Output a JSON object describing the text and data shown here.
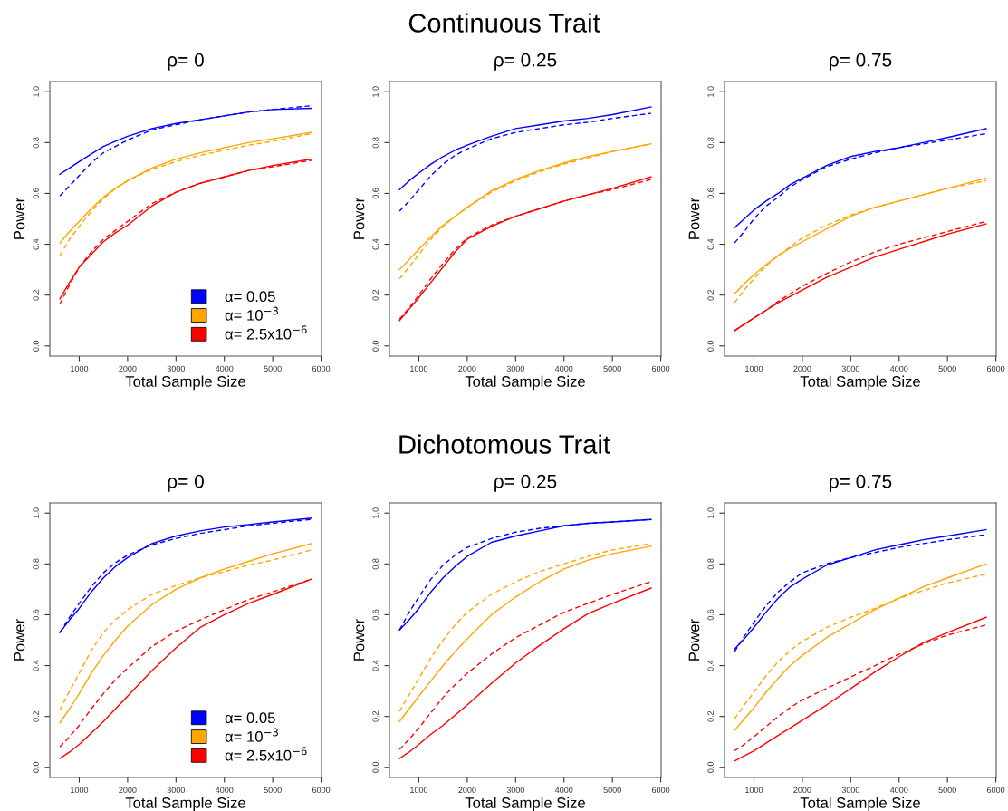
{
  "chart_data": [
    {
      "type": "line",
      "title": "ρ= 0",
      "annotations": [
        "Continuous Trait"
      ],
      "xlabel": "Total Sample Size",
      "ylabel": "Power",
      "xlim": [
        392,
        6008
      ],
      "ylim": [
        -0.04,
        1.04
      ],
      "xticks": [
        1000,
        2000,
        3000,
        4000,
        5000,
        6000
      ],
      "yticks": [
        {
          "value": 0,
          "label": "0.0"
        },
        {
          "value": 0.2,
          "label": "0.2"
        },
        {
          "value": 0.4,
          "label": "0.4"
        },
        {
          "value": 0.6,
          "label": "0.6"
        },
        {
          "value": 0.8,
          "label": "0.8"
        },
        {
          "value": 1,
          "label": "1.0"
        }
      ],
      "legend": "bottom right",
      "grid": false,
      "x": [
        600,
        800,
        1000,
        1250,
        1500,
        1750,
        2000,
        2500,
        3000,
        3500,
        4000,
        4500,
        5000,
        5800
      ],
      "series": [
        {
          "name": "α= 0.05",
          "color": "#0000ff",
          "line_style": "solid",
          "values": [
            0.675,
            0.7,
            0.725,
            0.755,
            0.785,
            0.805,
            0.825,
            0.855,
            0.875,
            0.89,
            0.905,
            0.92,
            0.93,
            0.935
          ]
        },
        {
          "color": "#0000ff",
          "line_style": "dashed",
          "values": [
            0.59,
            0.63,
            0.67,
            0.72,
            0.76,
            0.785,
            0.81,
            0.85,
            0.87,
            0.89,
            0.905,
            0.92,
            0.93,
            0.945
          ]
        },
        {
          "name": "α= 10$^{−3}$",
          "color": "#ffa500",
          "line_style": "solid",
          "values": [
            0.405,
            0.45,
            0.49,
            0.54,
            0.585,
            0.62,
            0.65,
            0.7,
            0.735,
            0.76,
            0.78,
            0.8,
            0.815,
            0.84
          ]
        },
        {
          "color": "#ffa500",
          "line_style": "dashed",
          "values": [
            0.355,
            0.42,
            0.47,
            0.53,
            0.58,
            0.62,
            0.65,
            0.695,
            0.725,
            0.75,
            0.77,
            0.79,
            0.805,
            0.835
          ]
        },
        {
          "name": "α= 2.5x10$^{−6}$",
          "color": "#ff0000",
          "line_style": "solid",
          "values": [
            0.185,
            0.25,
            0.31,
            0.36,
            0.41,
            0.445,
            0.475,
            0.55,
            0.605,
            0.64,
            0.665,
            0.69,
            0.71,
            0.735
          ]
        },
        {
          "color": "#ff0000",
          "line_style": "dashed",
          "values": [
            0.165,
            0.24,
            0.31,
            0.37,
            0.42,
            0.455,
            0.49,
            0.56,
            0.605,
            0.64,
            0.665,
            0.69,
            0.705,
            0.73
          ]
        }
      ]
    },
    {
      "type": "line",
      "title": "ρ= 0.25",
      "xlabel": "Total Sample Size",
      "ylabel": "Power",
      "xlim": [
        392,
        6008
      ],
      "ylim": [
        -0.04,
        1.04
      ],
      "xticks": [
        1000,
        2000,
        3000,
        4000,
        5000,
        6000
      ],
      "yticks": [
        {
          "value": 0,
          "label": "0.0"
        },
        {
          "value": 0.2,
          "label": "0.2"
        },
        {
          "value": 0.4,
          "label": "0.4"
        },
        {
          "value": 0.6,
          "label": "0.6"
        },
        {
          "value": 0.8,
          "label": "0.8"
        },
        {
          "value": 1,
          "label": "1.0"
        }
      ],
      "grid": false,
      "x": [
        600,
        800,
        1000,
        1250,
        1500,
        1750,
        2000,
        2500,
        3000,
        3500,
        4000,
        4500,
        5000,
        5800
      ],
      "series": [
        {
          "color": "#0000ff",
          "line_style": "solid",
          "values": [
            0.615,
            0.65,
            0.68,
            0.715,
            0.745,
            0.77,
            0.79,
            0.825,
            0.855,
            0.87,
            0.885,
            0.895,
            0.91,
            0.94
          ]
        },
        {
          "color": "#0000ff",
          "line_style": "dashed",
          "values": [
            0.53,
            0.57,
            0.615,
            0.67,
            0.715,
            0.75,
            0.775,
            0.815,
            0.84,
            0.855,
            0.87,
            0.88,
            0.895,
            0.915
          ]
        },
        {
          "color": "#ffa500",
          "line_style": "solid",
          "values": [
            0.3,
            0.34,
            0.38,
            0.43,
            0.475,
            0.51,
            0.545,
            0.61,
            0.655,
            0.69,
            0.72,
            0.745,
            0.765,
            0.795
          ]
        },
        {
          "color": "#ffa500",
          "line_style": "dashed",
          "values": [
            0.265,
            0.31,
            0.36,
            0.42,
            0.47,
            0.51,
            0.545,
            0.605,
            0.65,
            0.685,
            0.715,
            0.74,
            0.765,
            0.795
          ]
        },
        {
          "color": "#ff0000",
          "line_style": "solid",
          "values": [
            0.1,
            0.145,
            0.19,
            0.25,
            0.31,
            0.37,
            0.42,
            0.47,
            0.51,
            0.54,
            0.57,
            0.595,
            0.62,
            0.665
          ]
        },
        {
          "color": "#ff0000",
          "line_style": "dashed",
          "values": [
            0.105,
            0.15,
            0.2,
            0.265,
            0.325,
            0.38,
            0.425,
            0.475,
            0.51,
            0.54,
            0.57,
            0.595,
            0.615,
            0.655
          ]
        }
      ]
    },
    {
      "type": "line",
      "title": "ρ= 0.75",
      "xlabel": "Total Sample Size",
      "ylabel": "Power",
      "xlim": [
        392,
        6008
      ],
      "ylim": [
        -0.04,
        1.04
      ],
      "xticks": [
        1000,
        2000,
        3000,
        4000,
        5000,
        6000
      ],
      "yticks": [
        {
          "value": 0,
          "label": "0.0"
        },
        {
          "value": 0.2,
          "label": "0.2"
        },
        {
          "value": 0.4,
          "label": "0.4"
        },
        {
          "value": 0.6,
          "label": "0.6"
        },
        {
          "value": 0.8,
          "label": "0.8"
        },
        {
          "value": 1,
          "label": "1.0"
        }
      ],
      "grid": false,
      "x": [
        600,
        800,
        1000,
        1250,
        1500,
        1750,
        2000,
        2500,
        3000,
        3500,
        4000,
        4500,
        5000,
        5800
      ],
      "series": [
        {
          "color": "#0000ff",
          "line_style": "solid",
          "values": [
            0.465,
            0.5,
            0.535,
            0.57,
            0.6,
            0.635,
            0.66,
            0.71,
            0.745,
            0.765,
            0.78,
            0.8,
            0.82,
            0.855
          ]
        },
        {
          "color": "#0000ff",
          "line_style": "dashed",
          "values": [
            0.405,
            0.45,
            0.5,
            0.55,
            0.585,
            0.625,
            0.655,
            0.705,
            0.735,
            0.76,
            0.78,
            0.795,
            0.81,
            0.835
          ]
        },
        {
          "color": "#ffa500",
          "line_style": "solid",
          "values": [
            0.205,
            0.245,
            0.28,
            0.32,
            0.355,
            0.385,
            0.41,
            0.46,
            0.51,
            0.545,
            0.57,
            0.595,
            0.62,
            0.66
          ]
        },
        {
          "color": "#ffa500",
          "line_style": "dashed",
          "values": [
            0.17,
            0.22,
            0.265,
            0.315,
            0.355,
            0.39,
            0.425,
            0.475,
            0.515,
            0.545,
            0.57,
            0.595,
            0.62,
            0.65
          ]
        },
        {
          "color": "#ff0000",
          "line_style": "solid",
          "values": [
            0.06,
            0.085,
            0.11,
            0.14,
            0.17,
            0.195,
            0.22,
            0.27,
            0.31,
            0.35,
            0.38,
            0.41,
            0.44,
            0.48
          ]
        },
        {
          "color": "#ff0000",
          "line_style": "dashed",
          "values": [
            0.06,
            0.085,
            0.11,
            0.14,
            0.175,
            0.205,
            0.235,
            0.285,
            0.33,
            0.37,
            0.4,
            0.425,
            0.45,
            0.49
          ]
        }
      ]
    },
    {
      "type": "line",
      "title": "ρ= 0",
      "annotations": [
        "Dichotomous Trait"
      ],
      "xlabel": "Total Sample Size",
      "ylabel": "Power",
      "xlim": [
        392,
        6008
      ],
      "ylim": [
        -0.04,
        1.04
      ],
      "xticks": [
        1000,
        2000,
        3000,
        4000,
        5000,
        6000
      ],
      "yticks": [
        {
          "value": 0,
          "label": "0.0"
        },
        {
          "value": 0.2,
          "label": "0.2"
        },
        {
          "value": 0.4,
          "label": "0.4"
        },
        {
          "value": 0.6,
          "label": "0.6"
        },
        {
          "value": 0.8,
          "label": "0.8"
        },
        {
          "value": 1,
          "label": "1.0"
        }
      ],
      "legend": "bottom right",
      "grid": false,
      "x": [
        600,
        800,
        1000,
        1250,
        1500,
        1750,
        2000,
        2500,
        3000,
        3500,
        4000,
        4500,
        5000,
        5800
      ],
      "series": [
        {
          "name": "α= 0.05",
          "color": "#0000ff",
          "line_style": "solid",
          "values": [
            0.53,
            0.58,
            0.625,
            0.69,
            0.745,
            0.79,
            0.825,
            0.88,
            0.91,
            0.93,
            0.945,
            0.955,
            0.965,
            0.98
          ]
        },
        {
          "color": "#0000ff",
          "line_style": "dashed",
          "values": [
            0.53,
            0.59,
            0.645,
            0.71,
            0.765,
            0.805,
            0.835,
            0.875,
            0.9,
            0.92,
            0.935,
            0.95,
            0.96,
            0.975
          ]
        },
        {
          "name": "α= 10$^{−3}$",
          "color": "#ffa500",
          "line_style": "solid",
          "values": [
            0.175,
            0.23,
            0.29,
            0.37,
            0.44,
            0.5,
            0.555,
            0.64,
            0.7,
            0.745,
            0.78,
            0.81,
            0.84,
            0.88
          ]
        },
        {
          "color": "#ffa500",
          "line_style": "dashed",
          "values": [
            0.225,
            0.3,
            0.37,
            0.46,
            0.53,
            0.58,
            0.62,
            0.68,
            0.715,
            0.745,
            0.77,
            0.795,
            0.815,
            0.855
          ]
        },
        {
          "name": "α= 2.5x10$^{−6}$",
          "color": "#ff0000",
          "line_style": "solid",
          "values": [
            0.035,
            0.06,
            0.09,
            0.135,
            0.18,
            0.23,
            0.28,
            0.38,
            0.47,
            0.55,
            0.6,
            0.645,
            0.68,
            0.74
          ]
        },
        {
          "color": "#ff0000",
          "line_style": "dashed",
          "values": [
            0.08,
            0.12,
            0.165,
            0.23,
            0.29,
            0.345,
            0.39,
            0.475,
            0.535,
            0.58,
            0.62,
            0.66,
            0.69,
            0.74
          ]
        }
      ]
    },
    {
      "type": "line",
      "title": "ρ= 0.25",
      "xlabel": "Total Sample Size",
      "ylabel": "Power",
      "xlim": [
        392,
        6008
      ],
      "ylim": [
        -0.04,
        1.04
      ],
      "xticks": [
        1000,
        2000,
        3000,
        4000,
        5000,
        6000
      ],
      "yticks": [
        {
          "value": 0,
          "label": "0.0"
        },
        {
          "value": 0.2,
          "label": "0.2"
        },
        {
          "value": 0.4,
          "label": "0.4"
        },
        {
          "value": 0.6,
          "label": "0.6"
        },
        {
          "value": 0.8,
          "label": "0.8"
        },
        {
          "value": 1,
          "label": "1.0"
        }
      ],
      "grid": false,
      "x": [
        600,
        800,
        1000,
        1250,
        1500,
        1750,
        2000,
        2500,
        3000,
        3500,
        4000,
        4500,
        5000,
        5800
      ],
      "series": [
        {
          "color": "#0000ff",
          "line_style": "solid",
          "values": [
            0.54,
            0.58,
            0.625,
            0.69,
            0.745,
            0.79,
            0.83,
            0.885,
            0.91,
            0.93,
            0.95,
            0.96,
            0.965,
            0.975
          ]
        },
        {
          "color": "#0000ff",
          "line_style": "dashed",
          "values": [
            0.54,
            0.61,
            0.67,
            0.74,
            0.795,
            0.835,
            0.865,
            0.9,
            0.925,
            0.94,
            0.95,
            0.96,
            0.965,
            0.975
          ]
        },
        {
          "color": "#ffa500",
          "line_style": "solid",
          "values": [
            0.18,
            0.23,
            0.28,
            0.34,
            0.4,
            0.455,
            0.505,
            0.6,
            0.67,
            0.73,
            0.78,
            0.815,
            0.84,
            0.87
          ]
        },
        {
          "color": "#ffa500",
          "line_style": "dashed",
          "values": [
            0.22,
            0.285,
            0.35,
            0.43,
            0.5,
            0.56,
            0.61,
            0.68,
            0.73,
            0.77,
            0.8,
            0.83,
            0.855,
            0.88
          ]
        },
        {
          "color": "#ff0000",
          "line_style": "solid",
          "values": [
            0.035,
            0.06,
            0.09,
            0.13,
            0.165,
            0.205,
            0.245,
            0.33,
            0.41,
            0.48,
            0.545,
            0.605,
            0.645,
            0.705
          ]
        },
        {
          "color": "#ff0000",
          "line_style": "dashed",
          "values": [
            0.07,
            0.11,
            0.155,
            0.215,
            0.275,
            0.325,
            0.37,
            0.445,
            0.51,
            0.56,
            0.61,
            0.645,
            0.68,
            0.73
          ]
        }
      ]
    },
    {
      "type": "line",
      "title": "ρ= 0.75",
      "xlabel": "Total Sample Size",
      "ylabel": "Power",
      "xlim": [
        392,
        6008
      ],
      "ylim": [
        -0.04,
        1.04
      ],
      "xticks": [
        1000,
        2000,
        3000,
        4000,
        5000,
        6000
      ],
      "yticks": [
        {
          "value": 0,
          "label": "0.0"
        },
        {
          "value": 0.2,
          "label": "0.2"
        },
        {
          "value": 0.4,
          "label": "0.4"
        },
        {
          "value": 0.6,
          "label": "0.6"
        },
        {
          "value": 0.8,
          "label": "0.8"
        },
        {
          "value": 1,
          "label": "1.0"
        }
      ],
      "grid": false,
      "x": [
        600,
        800,
        1000,
        1250,
        1500,
        1750,
        2000,
        2500,
        3000,
        3500,
        4000,
        4500,
        5000,
        5800
      ],
      "series": [
        {
          "color": "#0000ff",
          "line_style": "solid",
          "values": [
            0.465,
            0.505,
            0.55,
            0.61,
            0.665,
            0.71,
            0.74,
            0.795,
            0.825,
            0.855,
            0.875,
            0.895,
            0.91,
            0.935
          ]
        },
        {
          "color": "#0000ff",
          "line_style": "dashed",
          "values": [
            0.455,
            0.515,
            0.57,
            0.635,
            0.69,
            0.73,
            0.765,
            0.8,
            0.825,
            0.845,
            0.865,
            0.88,
            0.895,
            0.915
          ]
        },
        {
          "color": "#ffa500",
          "line_style": "solid",
          "values": [
            0.145,
            0.19,
            0.235,
            0.295,
            0.35,
            0.4,
            0.44,
            0.51,
            0.565,
            0.62,
            0.665,
            0.71,
            0.745,
            0.8
          ]
        },
        {
          "color": "#ffa500",
          "line_style": "dashed",
          "values": [
            0.19,
            0.245,
            0.295,
            0.36,
            0.415,
            0.46,
            0.495,
            0.55,
            0.59,
            0.625,
            0.665,
            0.695,
            0.725,
            0.76
          ]
        },
        {
          "color": "#ff0000",
          "line_style": "solid",
          "values": [
            0.025,
            0.045,
            0.065,
            0.095,
            0.125,
            0.155,
            0.185,
            0.245,
            0.31,
            0.375,
            0.435,
            0.49,
            0.53,
            0.59
          ]
        },
        {
          "color": "#ff0000",
          "line_style": "dashed",
          "values": [
            0.065,
            0.09,
            0.12,
            0.16,
            0.2,
            0.235,
            0.265,
            0.31,
            0.355,
            0.4,
            0.445,
            0.485,
            0.52,
            0.56
          ]
        }
      ]
    }
  ]
}
